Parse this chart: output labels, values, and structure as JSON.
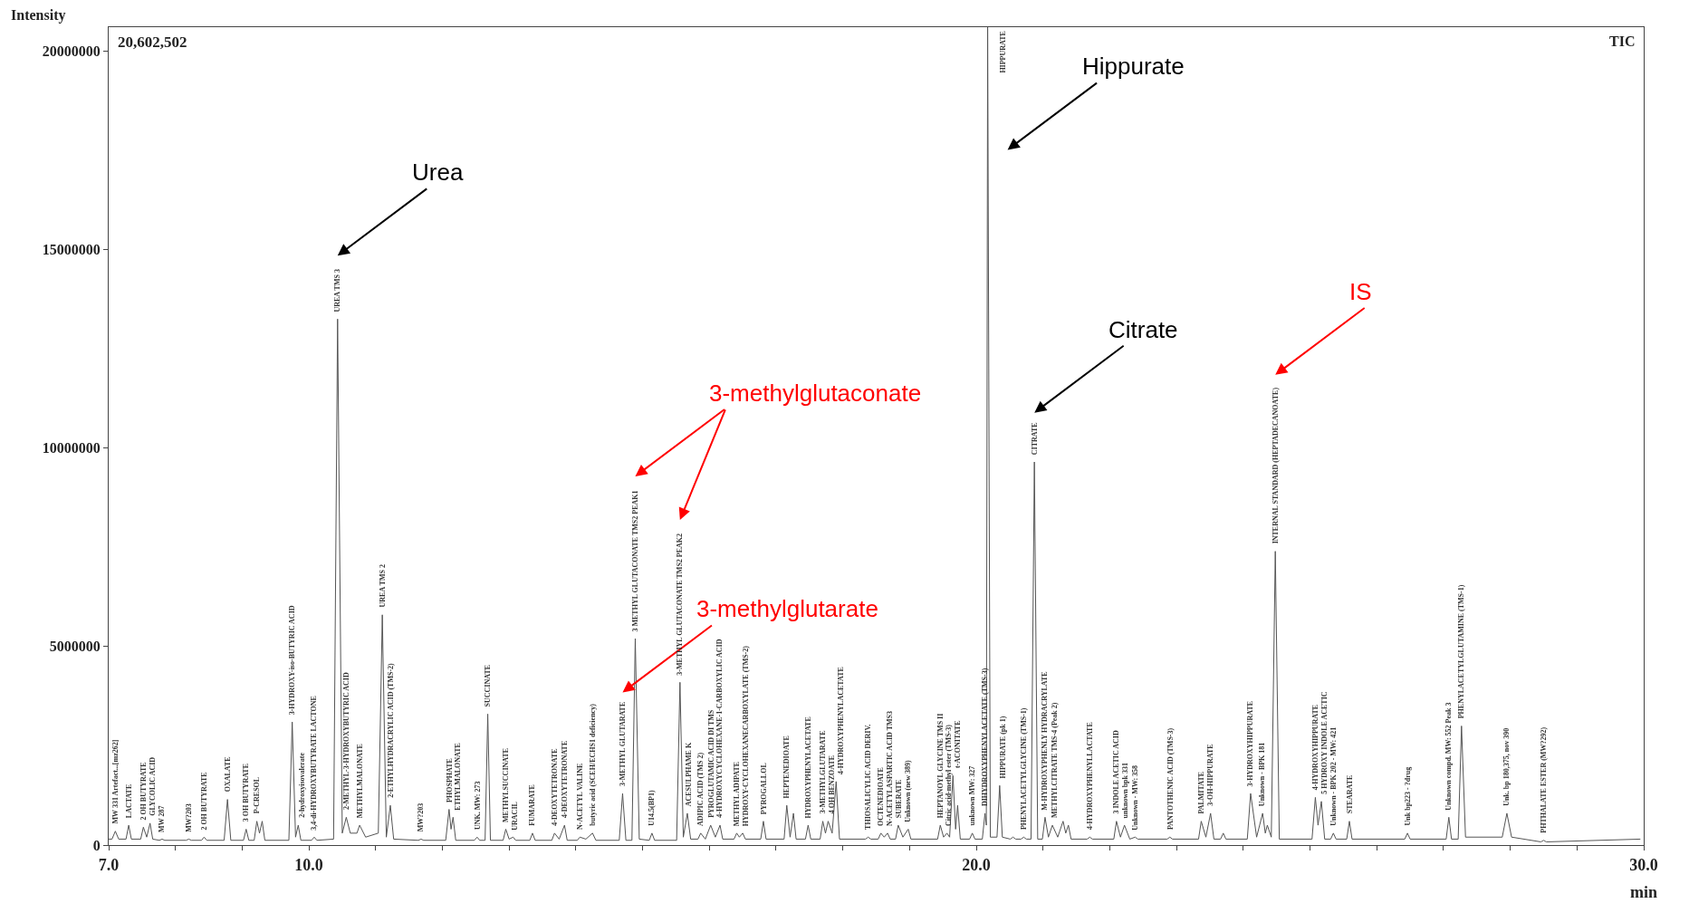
{
  "chart_data": {
    "type": "line",
    "ylabel": "Intensity",
    "xlabel": "min",
    "xlim": [
      7,
      30
    ],
    "ylim": [
      0,
      20602502
    ],
    "xticks": [
      {
        "value": 7,
        "label": "7.0"
      },
      {
        "value": 8,
        "label": null
      },
      {
        "value": 9,
        "label": null
      },
      {
        "value": 10,
        "label": "10.0"
      },
      {
        "value": 11,
        "label": null
      },
      {
        "value": 12,
        "label": null
      },
      {
        "value": 13,
        "label": null
      },
      {
        "value": 14,
        "label": null
      },
      {
        "value": 15,
        "label": null
      },
      {
        "value": 16,
        "label": null
      },
      {
        "value": 17,
        "label": null
      },
      {
        "value": 18,
        "label": null
      },
      {
        "value": 19,
        "label": null
      },
      {
        "value": 20,
        "label": "20.0"
      },
      {
        "value": 21,
        "label": null
      },
      {
        "value": 22,
        "label": null
      },
      {
        "value": 23,
        "label": null
      },
      {
        "value": 24,
        "label": null
      },
      {
        "value": 25,
        "label": null
      },
      {
        "value": 26,
        "label": null
      },
      {
        "value": 27,
        "label": null
      },
      {
        "value": 28,
        "label": null
      },
      {
        "value": 29,
        "label": null
      },
      {
        "value": 30,
        "label": "30.0"
      }
    ],
    "yticks": [
      0,
      5000000,
      10000000,
      15000000,
      20000000
    ],
    "marker": "none",
    "line_style": "solid",
    "series": [
      {
        "color": "#555555",
        "x": [
          7.0,
          7.05,
          7.1,
          7.15,
          7.26,
          7.3,
          7.34,
          7.48,
          7.52,
          7.57,
          7.62,
          7.66,
          7.76,
          7.8,
          7.84,
          8.16,
          8.2,
          8.24,
          8.39,
          8.43,
          8.47,
          8.73,
          8.78,
          8.83,
          9.02,
          9.06,
          9.1,
          9.18,
          9.22,
          9.26,
          9.3,
          9.34,
          9.7,
          9.75,
          9.8,
          9.84,
          9.88,
          10.04,
          10.08,
          10.12,
          10.37,
          10.43,
          10.5,
          10.56,
          10.62,
          10.72,
          10.76,
          10.85,
          11.04,
          11.1,
          11.16,
          11.22,
          11.27,
          11.64,
          11.68,
          11.72,
          12.05,
          12.1,
          12.13,
          12.16,
          12.2,
          12.48,
          12.52,
          12.56,
          12.64,
          12.68,
          12.72,
          12.91,
          12.95,
          13.0,
          13.06,
          13.1,
          13.31,
          13.35,
          13.39,
          13.64,
          13.68,
          13.75,
          13.83,
          13.87,
          14.02,
          14.06,
          14.15,
          14.25,
          14.3,
          14.65,
          14.7,
          14.75,
          14.84,
          14.89,
          14.95,
          15.1,
          15.14,
          15.18,
          15.51,
          15.56,
          15.61,
          15.67,
          15.72,
          15.83,
          15.87,
          15.94,
          16.02,
          16.09,
          16.16,
          16.2,
          16.37,
          16.41,
          16.45,
          16.5,
          16.54,
          16.77,
          16.81,
          16.85,
          17.12,
          17.16,
          17.21,
          17.26,
          17.3,
          17.44,
          17.48,
          17.52,
          17.66,
          17.7,
          17.74,
          17.78,
          17.84,
          17.9,
          17.95,
          18.34,
          18.38,
          18.42,
          18.53,
          18.57,
          18.62,
          18.67,
          18.71,
          18.79,
          18.83,
          18.9,
          18.98,
          19.02,
          19.42,
          19.46,
          19.51,
          19.56,
          19.6,
          19.65,
          19.69,
          19.72,
          19.76,
          19.9,
          19.94,
          19.98,
          20.09,
          20.13,
          20.15,
          20.17,
          20.21,
          20.31,
          20.35,
          20.39,
          20.51,
          20.55,
          20.59,
          20.67,
          20.71,
          20.75,
          20.82,
          20.87,
          20.92,
          20.99,
          21.03,
          21.08,
          21.14,
          21.22,
          21.3,
          21.34,
          21.38,
          21.42,
          21.66,
          21.7,
          21.74,
          22.06,
          22.1,
          22.16,
          22.22,
          22.3,
          22.38,
          22.42,
          22.86,
          22.9,
          22.94,
          23.33,
          23.37,
          23.44,
          23.51,
          23.56,
          23.66,
          23.7,
          23.74,
          24.06,
          24.11,
          24.2,
          24.29,
          24.33,
          24.36,
          24.42,
          24.48,
          24.54,
          25.03,
          25.08,
          25.12,
          25.17,
          25.22,
          25.31,
          25.35,
          25.39,
          25.55,
          25.59,
          25.63,
          26.42,
          26.46,
          26.5,
          27.04,
          27.08,
          27.12,
          27.22,
          27.27,
          27.33,
          27.88,
          27.95,
          28.02,
          28.46,
          28.5,
          28.54,
          29.95
        ],
        "values": [
          150000.0,
          150000.0,
          350000.0,
          150000.0,
          150000.0,
          500000.0,
          150000.0,
          150000.0,
          450000.0,
          200000.0,
          550000.0,
          150000.0,
          120000.0,
          150000.0,
          120000.0,
          120000.0,
          150000.0,
          120000.0,
          120000.0,
          200000.0,
          120000.0,
          120000.0,
          1150000.0,
          120000.0,
          120000.0,
          400000.0,
          120000.0,
          120000.0,
          600000.0,
          300000.0,
          600000.0,
          120000.0,
          120000.0,
          3100000.0,
          200000.0,
          500000.0,
          120000.0,
          120000.0,
          200000.0,
          120000.0,
          150000.0,
          13250000.0,
          300000.0,
          700000.0,
          300000.0,
          300000.0,
          500000.0,
          200000.0,
          300000.0,
          5800000.0,
          200000.0,
          1000000.0,
          150000.0,
          120000.0,
          150000.0,
          120000.0,
          120000.0,
          900000.0,
          400000.0,
          700000.0,
          120000.0,
          120000.0,
          200000.0,
          120000.0,
          120000.0,
          3300000.0,
          120000.0,
          120000.0,
          400000.0,
          150000.0,
          200000.0,
          120000.0,
          120000.0,
          300000.0,
          120000.0,
          120000.0,
          300000.0,
          150000.0,
          500000.0,
          120000.0,
          120000.0,
          200000.0,
          150000.0,
          300000.0,
          120000.0,
          120000.0,
          1300000.0,
          120000.0,
          120000.0,
          5200000.0,
          150000.0,
          120000.0,
          300000.0,
          120000.0,
          120000.0,
          4100000.0,
          200000.0,
          800000.0,
          150000.0,
          150000.0,
          300000.0,
          150000.0,
          500000.0,
          200000.0,
          500000.0,
          150000.0,
          150000.0,
          300000.0,
          200000.0,
          300000.0,
          150000.0,
          150000.0,
          600000.0,
          150000.0,
          150000.0,
          1000000.0,
          200000.0,
          800000.0,
          150000.0,
          150000.0,
          500000.0,
          150000.0,
          150000.0,
          600000.0,
          300000.0,
          600000.0,
          300000.0,
          1600000.0,
          150000.0,
          150000.0,
          200000.0,
          150000.0,
          150000.0,
          300000.0,
          200000.0,
          300000.0,
          150000.0,
          150000.0,
          500000.0,
          200000.0,
          400000.0,
          150000.0,
          150000.0,
          500000.0,
          200000.0,
          300000.0,
          200000.0,
          1750000.0,
          400000.0,
          1000000.0,
          150000.0,
          150000.0,
          300000.0,
          150000.0,
          150000.0,
          800000.0,
          500000.0,
          20602502,
          200000.0,
          200000.0,
          1500000.0,
          200000.0,
          150000.0,
          200000.0,
          150000.0,
          150000.0,
          200000.0,
          150000.0,
          150000.0,
          9650000.0,
          150000.0,
          150000.0,
          700000.0,
          200000.0,
          500000.0,
          200000.0,
          600000.0,
          300000.0,
          500000.0,
          150000.0,
          150000.0,
          200000.0,
          150000.0,
          150000.0,
          600000.0,
          200000.0,
          500000.0,
          150000.0,
          200000.0,
          150000.0,
          150000.0,
          200000.0,
          150000.0,
          150000.0,
          600000.0,
          200000.0,
          800000.0,
          150000.0,
          150000.0,
          300000.0,
          150000.0,
          150000.0,
          1300000.0,
          200000.0,
          800000.0,
          300000.0,
          500000.0,
          200000.0,
          7400000.0,
          150000.0,
          150000.0,
          1200000.0,
          500000.0,
          1100000.0,
          150000.0,
          150000.0,
          300000.0,
          150000.0,
          150000.0,
          600000.0,
          150000.0,
          150000.0,
          300000.0,
          150000.0,
          150000.0,
          700000.0,
          150000.0,
          150000.0,
          3000000.0,
          200000.0,
          200000.0,
          800000.0,
          200000.0,
          80000.0,
          120000.0,
          80000.0,
          150000.0
        ]
      }
    ],
    "annotations": [
      "20,602,502",
      "TIC",
      "Urea",
      "Hippurate",
      "Citrate",
      "IS",
      "3-methylglutaconate",
      "3-methylglutarate",
      {
        "text": "MW 331 Artefact...[mz262]",
        "x": 7.1,
        "y": 350000.0
      },
      {
        "text": "LACTATE",
        "x": 7.3,
        "y": 500000.0
      },
      {
        "text": "2 OH BUTYRATE",
        "x": 7.52,
        "y": 450000.0
      },
      {
        "text": "GLYCOLIC ACID",
        "x": 7.62,
        "y": 550000.0
      },
      {
        "text": "MW 287",
        "x": 7.8,
        "y": 150000.0
      },
      {
        "text": "MW?203",
        "x": 8.2,
        "y": 150000.0
      },
      {
        "text": "2 OH BUTYRATE",
        "x": 8.43,
        "y": 200000.0
      },
      {
        "text": "OXALATE",
        "x": 8.78,
        "y": 1150000.0
      },
      {
        "text": "3 OH BUTYRATE",
        "x": 9.06,
        "y": 400000.0
      },
      {
        "text": "P-CRESOL",
        "x": 9.22,
        "y": 600000.0
      },
      {
        "text": "3-HYDROXY-iso-BUTYRIC ACID",
        "x": 9.75,
        "y": 3100000.0
      },
      {
        "text": "2-hydroxyisovalerate",
        "x": 9.84,
        "y": 500000.0
      },
      {
        "text": "3,4-di-HYDROXYBUTYRATE LACTONE",
        "x": 10.08,
        "y": 200000.0
      },
      {
        "text": "UREA TMS 3",
        "x": 10.43,
        "y": 13250000.0
      },
      {
        "text": "2-METHYL-3-HYDROXYBUTYRIC ACID",
        "x": 10.56,
        "y": 700000.0
      },
      {
        "text": "METHYLMALONATE",
        "x": 10.76,
        "y": 500000.0
      },
      {
        "text": "UREA TMS 2",
        "x": 11.1,
        "y": 5800000.0
      },
      {
        "text": "2-ETHYLHYDRACRYLIC ACID (TMS-2)",
        "x": 11.22,
        "y": 1000000.0
      },
      {
        "text": "MW?203",
        "x": 11.68,
        "y": 150000.0
      },
      {
        "text": "PHOSPHATE",
        "x": 12.1,
        "y": 900000.0
      },
      {
        "text": "ETHYLMALONATE",
        "x": 12.16,
        "y": 700000.0
      },
      {
        "text": "UNK. MW: 273",
        "x": 12.52,
        "y": 200000.0
      },
      {
        "text": "SUCCINATE",
        "x": 12.68,
        "y": 3300000.0
      },
      {
        "text": "METHYLSUCCINATE",
        "x": 12.95,
        "y": 400000.0
      },
      {
        "text": "URACIL",
        "x": 13.06,
        "y": 200000.0
      },
      {
        "text": "FUMARATE",
        "x": 13.35,
        "y": 300000.0
      },
      {
        "text": "4-DEOXYTETRONATE",
        "x": 13.68,
        "y": 300000.0
      },
      {
        "text": "4-DEOXYTETRONATE",
        "x": 13.83,
        "y": 500000.0
      },
      {
        "text": "N-ACETYL VALINE",
        "x": 14.06,
        "y": 200000.0
      },
      {
        "text": "butyric acid (SCEH/ECHS1 deficiency)",
        "x": 14.25,
        "y": 300000.0
      },
      {
        "text": "3-METHYL GLUTARATE",
        "x": 14.7,
        "y": 1300000.0
      },
      {
        "text": "3 METHYL GLUTACONATE TMS2 PEAK1",
        "x": 14.89,
        "y": 5200000.0
      },
      {
        "text": "U14.5(BP1)",
        "x": 15.14,
        "y": 300000.0
      },
      {
        "text": "3-METHYL GLUTACONATE TMS2 PEAK2",
        "x": 15.56,
        "y": 4100000.0
      },
      {
        "text": "ACESULPHAME K",
        "x": 15.67,
        "y": 800000.0
      },
      {
        "text": "ADIPIC ACID (TMS 2)",
        "x": 15.87,
        "y": 300000.0
      },
      {
        "text": "PYROGLUTAMIC ACID DI TMS",
        "x": 16.02,
        "y": 500000.0
      },
      {
        "text": "4-HYDROXYCYCLOHEXANE-1-CARBOXYLIC ACID",
        "x": 16.16,
        "y": 500000.0
      },
      {
        "text": "METHYL ADIPATE",
        "x": 16.41,
        "y": 300000.0
      },
      {
        "text": "HYDROXY-CYCLOHEXANECARBOXYLATE (TMS-2)",
        "x": 16.5,
        "y": 300000.0
      },
      {
        "text": "PYROGALLOL",
        "x": 16.81,
        "y": 600000.0
      },
      {
        "text": "HEPTENEDIOATE",
        "x": 17.16,
        "y": 1000000.0
      },
      {
        "text": "HYDROXYPHENYLACETATE",
        "x": 17.48,
        "y": 500000.0
      },
      {
        "text": "3-METHYLGLUTARATE",
        "x": 17.7,
        "y": 600000.0
      },
      {
        "text": "4 OH BENZOATE",
        "x": 17.78,
        "y": 600000.0
      },
      {
        "text": "4-HYDROXYPHENYLACETATE",
        "x": 17.9,
        "y": 1600000.0
      },
      {
        "text": "THIOSALICYLIC ACID DERIV.",
        "x": 18.38,
        "y": 200000.0
      },
      {
        "text": "OCTENEDIOATE",
        "x": 18.57,
        "y": 300000.0
      },
      {
        "text": "N-ACETYLASPARTIC ACID TMS3",
        "x": 18.67,
        "y": 300000.0
      },
      {
        "text": "SUBERATE",
        "x": 18.83,
        "y": 500000.0
      },
      {
        "text": "Unknown (new 389)",
        "x": 18.98,
        "y": 400000.0
      },
      {
        "text": "HEPTANOYL GLYCINE TMS II",
        "x": 19.46,
        "y": 500000.0
      },
      {
        "text": "Citric acid-methyl ester (TMS-3)",
        "x": 19.56,
        "y": 300000.0
      },
      {
        "text": "t-ACONITATE",
        "x": 19.65,
        "y": 1750000.0
      },
      {
        "text": "unknown MW: 327",
        "x": 19.94,
        "y": 300000.0
      },
      {
        "text": "DIHYDROXYPHENYLACETATE (TMS-3)",
        "x": 20.13,
        "y": 800000.0
      },
      {
        "text": "HIPPURATE",
        "x": 20.17,
        "y": 20602502
      },
      {
        "text": "HIPPURATE (pk 1)",
        "x": 20.35,
        "y": 1500000.0
      },
      {
        "text": "PHENYLACETYLGLYCINE (TMS-1)",
        "x": 20.71,
        "y": 200000.0
      },
      {
        "text": "CITRATE",
        "x": 20.87,
        "y": 9650000.0
      },
      {
        "text": "M-HYDROXYPHENLY HYDRACRYLATE",
        "x": 21.03,
        "y": 700000.0
      },
      {
        "text": "METHYLCITRATE TMS-4 (Peak 2)",
        "x": 21.14,
        "y": 500000.0
      },
      {
        "text": "4-HYDROXYPHENYLLACTATE",
        "x": 21.7,
        "y": 200000.0
      },
      {
        "text": "3 INDOLE ACETIC ACID",
        "x": 22.1,
        "y": 600000.0
      },
      {
        "text": "unknown bpk 331",
        "x": 22.22,
        "y": 500000.0
      },
      {
        "text": "Unknown - MW: 358",
        "x": 22.38,
        "y": 200000.0
      },
      {
        "text": "PANTOTHENIC ACID (TMS-3)",
        "x": 22.9,
        "y": 200000.0
      },
      {
        "text": "PALMITATE",
        "x": 23.37,
        "y": 600000.0
      },
      {
        "text": "3-OH-HIPPURATE",
        "x": 23.51,
        "y": 800000.0
      },
      {
        "text": "3-HYDROXYHIPPURATE",
        "x": 24.11,
        "y": 1300000.0
      },
      {
        "text": "Unknown - BPK 181",
        "x": 24.29,
        "y": 800000.0
      },
      {
        "text": "INTERNAL STANDARD (HEPTADECANOATE)",
        "x": 24.48,
        "y": 7400000.0
      },
      {
        "text": "4-HYDROXYHIPPURATE",
        "x": 25.08,
        "y": 1200000.0
      },
      {
        "text": "5 HYDROXY INDOLE ACETIC",
        "x": 25.17,
        "y": 1100000.0
      },
      {
        "text": "Unknown - BPK 202 - MW: 421",
        "x": 25.35,
        "y": 300000.0
      },
      {
        "text": "STEARATE",
        "x": 25.59,
        "y": 600000.0
      },
      {
        "text": "Unk bp223 - ?drug",
        "x": 26.46,
        "y": 300000.0
      },
      {
        "text": "Unknown compd. MW: 552 Peak 3",
        "x": 27.08,
        "y": 700000.0
      },
      {
        "text": "PHENYLACETYLGLUTAMINE (TMS-1)",
        "x": 27.27,
        "y": 3000000.0
      },
      {
        "text": "Unk. bp 180,375, nov 390",
        "x": 27.95,
        "y": 800000.0
      },
      {
        "text": "PHTHALATE ESTER (MW?292)",
        "x": 28.5,
        "y": 120000.0
      }
    ]
  }
}
